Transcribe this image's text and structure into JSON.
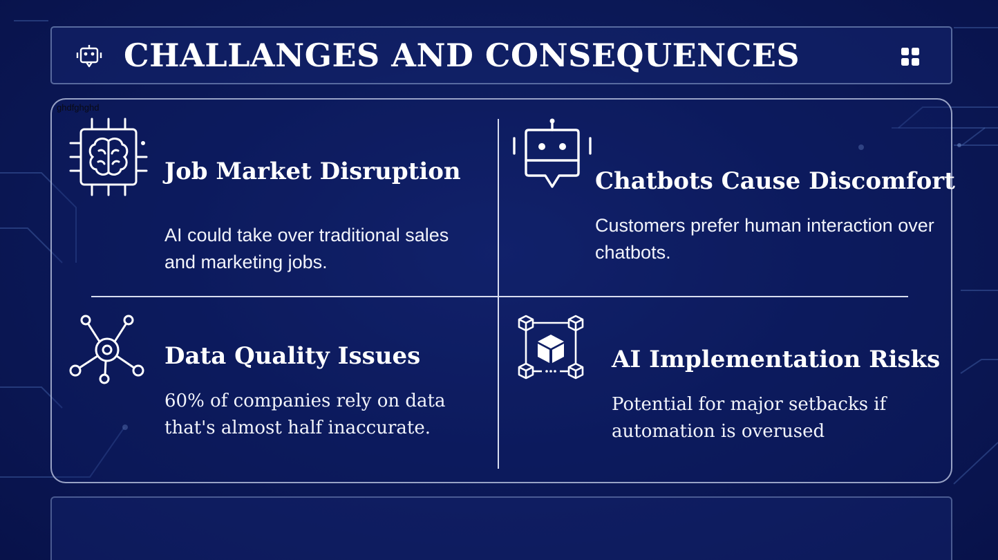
{
  "header": {
    "title": "CHALLANGES AND CONSEQUENCES",
    "left_icon": "chatbot-icon",
    "right_icon": "grid-icon"
  },
  "stray_text": "ghdfghghd",
  "cards": [
    {
      "icon": "brain-chip-icon",
      "title": "Job Market Disruption",
      "description": "AI could take over traditional sales and marketing jobs."
    },
    {
      "icon": "robot-chat-icon",
      "title": "Chatbots Cause Discomfort",
      "description": "Customers prefer human interaction over chatbots."
    },
    {
      "icon": "network-hub-icon",
      "title": "Data Quality Issues",
      "description": "60% of companies rely on data that's almost half inaccurate."
    },
    {
      "icon": "cube-network-icon",
      "title": "AI Implementation Risks",
      "description": "Potential for major setbacks if automation is overused"
    }
  ],
  "colors": {
    "background": "#0c1a5a",
    "text": "#ffffff",
    "panel_border": "#d9def0"
  }
}
